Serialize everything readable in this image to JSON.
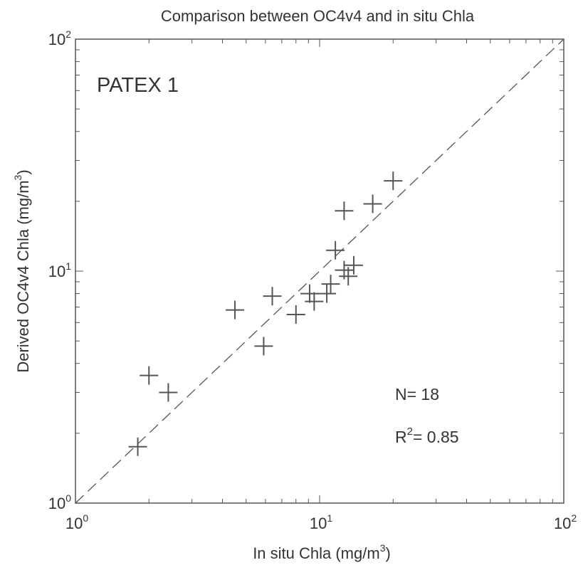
{
  "chart_data": {
    "type": "scatter",
    "title": "Comparison between OC4v4 and in situ Chla",
    "xlabel": "In situ Chla (mg/m³)",
    "xlabel_base": "In situ Chla (mg/m",
    "xlabel_sup": "3",
    "xlabel_tail": ")",
    "ylabel": "Derived OC4v4 Chla (mg/m³)",
    "ylabel_base": "Derived OC4v4 Chla (mg/m",
    "ylabel_sup": "3",
    "ylabel_tail": ")",
    "xscale": "log",
    "yscale": "log",
    "xlim": [
      1,
      100
    ],
    "ylim": [
      1,
      100
    ],
    "x_ticks": [
      {
        "value": 1,
        "base": "10",
        "exp": "0"
      },
      {
        "value": 10,
        "base": "10",
        "exp": "1"
      },
      {
        "value": 100,
        "base": "10",
        "exp": "2"
      }
    ],
    "y_ticks": [
      {
        "value": 1,
        "base": "10",
        "exp": "0"
      },
      {
        "value": 10,
        "base": "10",
        "exp": "1"
      },
      {
        "value": 100,
        "base": "10",
        "exp": "2"
      }
    ],
    "grid": false,
    "marker": "+",
    "reference_line": {
      "style": "dashed",
      "x": [
        1,
        100
      ],
      "y": [
        1,
        100
      ]
    },
    "annotations": {
      "panel_label": "PATEX 1",
      "n_text": "N= 18",
      "r2_prefix": "R",
      "r2_sup": "2",
      "r2_value": "= 0.85"
    },
    "points": [
      {
        "x": 1.8,
        "y": 1.75
      },
      {
        "x": 2.0,
        "y": 3.55
      },
      {
        "x": 2.4,
        "y": 3.0
      },
      {
        "x": 4.5,
        "y": 6.8
      },
      {
        "x": 5.9,
        "y": 4.75
      },
      {
        "x": 6.4,
        "y": 7.8
      },
      {
        "x": 8.0,
        "y": 6.5
      },
      {
        "x": 9.1,
        "y": 8.0
      },
      {
        "x": 9.5,
        "y": 7.4
      },
      {
        "x": 10.7,
        "y": 8.0
      },
      {
        "x": 11.1,
        "y": 8.8
      },
      {
        "x": 11.6,
        "y": 12.3
      },
      {
        "x": 12.6,
        "y": 18.2
      },
      {
        "x": 12.6,
        "y": 10.1
      },
      {
        "x": 13.1,
        "y": 9.5
      },
      {
        "x": 13.8,
        "y": 10.6
      },
      {
        "x": 16.5,
        "y": 19.5
      },
      {
        "x": 20.0,
        "y": 24.5
      }
    ]
  }
}
